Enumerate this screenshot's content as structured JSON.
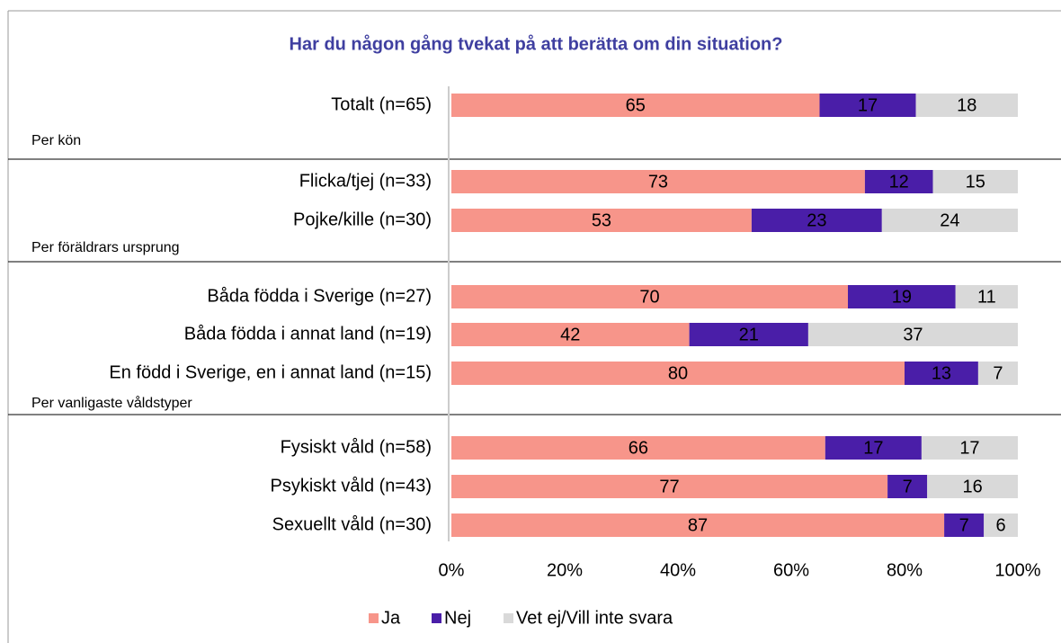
{
  "chart_data": {
    "type": "stacked-bar-horizontal",
    "title": "Har du någon gång tvekat på att berätta om din situation?",
    "categories": [
      "Totalt (n=65)",
      "Flicka/tjej (n=33)",
      "Pojke/kille (n=30)",
      "Båda födda i Sverige (n=27)",
      "Båda födda i annat land (n=19)",
      "En född i Sverige, en i annat land (n=15)",
      "Fysiskt våld (n=58)",
      "Psykiskt våld (n=43)",
      "Sexuellt våld (n=30)"
    ],
    "series": [
      {
        "name": "Ja",
        "color": "#f7958a",
        "values": [
          65,
          73,
          53,
          70,
          42,
          80,
          66,
          77,
          87
        ]
      },
      {
        "name": "Nej",
        "color": "#4a1ea8",
        "values": [
          17,
          12,
          23,
          19,
          21,
          13,
          17,
          7,
          7
        ]
      },
      {
        "name": "Vet ej/Vill inte svara",
        "color": "#d9d9d9",
        "values": [
          18,
          15,
          24,
          11,
          37,
          7,
          17,
          16,
          6
        ]
      }
    ],
    "annotations": [
      "Per kön",
      "Per föräldrars ursprung",
      "Per vanligaste våldstyper"
    ],
    "xlim": [
      0,
      100
    ],
    "xticks": [
      {
        "value": 0,
        "label": "0%"
      },
      {
        "value": 20,
        "label": "20%"
      },
      {
        "value": 40,
        "label": "40%"
      },
      {
        "value": 60,
        "label": "60%"
      },
      {
        "value": 80,
        "label": "80%"
      },
      {
        "value": 100,
        "label": "100%"
      }
    ],
    "legend": "bottom"
  }
}
